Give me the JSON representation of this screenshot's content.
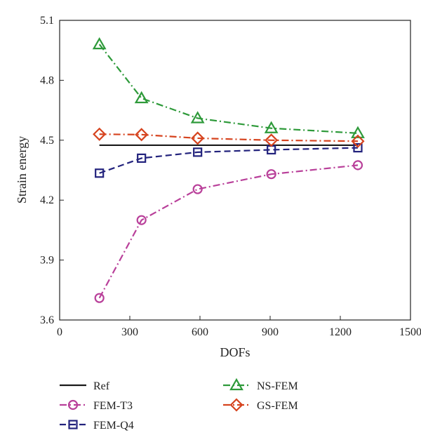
{
  "chart_data": {
    "type": "line",
    "xlabel": "DOFs",
    "ylabel": "Strain energy",
    "xlim": [
      0,
      1500
    ],
    "ylim": [
      3.6,
      5.1
    ],
    "xticks": [
      0,
      300,
      600,
      900,
      1200,
      1500
    ],
    "xtick_labels": [
      "0",
      "300",
      "600",
      "900",
      "1200",
      "1500"
    ],
    "yticks": [
      3.6,
      3.9,
      4.2,
      4.5,
      4.8,
      5.1
    ],
    "ytick_labels": [
      "3.6",
      "3.9",
      "4.2",
      "4.5",
      "4.8",
      "5.1"
    ],
    "grid": false,
    "legend_placement": "bottom, below plot, two columns",
    "series": [
      {
        "name": "Ref",
        "color": "#1a1a1a",
        "dash": "solid",
        "marker": "none",
        "x": [
          170,
          1275
        ],
        "y": [
          4.475,
          4.475
        ]
      },
      {
        "name": "FEM-T3",
        "color": "#b9409a",
        "dash": "dashdot",
        "marker": "circle",
        "x": [
          170,
          350,
          590,
          905,
          1275
        ],
        "y": [
          3.71,
          4.1,
          4.255,
          4.33,
          4.375
        ]
      },
      {
        "name": "FEM-Q4",
        "color": "#23237d",
        "dash": "dashed",
        "marker": "square",
        "x": [
          170,
          350,
          590,
          905,
          1275
        ],
        "y": [
          4.335,
          4.41,
          4.44,
          4.452,
          4.462
        ]
      },
      {
        "name": "NS-FEM",
        "color": "#2e9a3a",
        "dash": "dashdot",
        "marker": "triangle",
        "x": [
          170,
          350,
          590,
          905,
          1275
        ],
        "y": [
          4.98,
          4.71,
          4.61,
          4.56,
          4.535
        ]
      },
      {
        "name": "GS-FEM",
        "color": "#d6431e",
        "dash": "dashdot",
        "marker": "diamond",
        "x": [
          170,
          350,
          590,
          905,
          1275
        ],
        "y": [
          4.53,
          4.528,
          4.51,
          4.5,
          4.495
        ]
      }
    ]
  }
}
